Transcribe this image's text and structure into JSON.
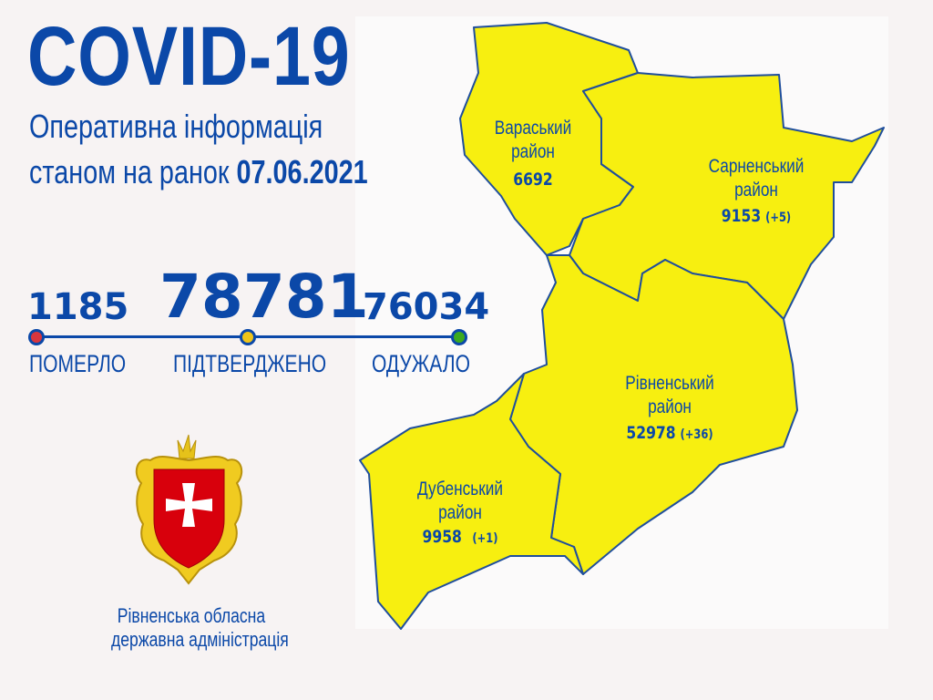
{
  "header": {
    "title": "COVID-19",
    "subtitle_line1": "Оперативна інформація",
    "subtitle_line2_prefix": "станом на ранок",
    "date": "07.06.2021"
  },
  "stats": {
    "died": {
      "value": "1185",
      "label": "ПОМЕРЛО",
      "color": "#d9363e"
    },
    "confirmed": {
      "value": "78781",
      "label": "ПІДТВЕРДЖЕНО",
      "color": "#f0c419"
    },
    "recovered": {
      "value": "76034",
      "label": "ОДУЖАЛО",
      "color": "#3caa1e"
    }
  },
  "map": {
    "fill_color": "#f7ef10",
    "border_color": "#1f4e9c",
    "districts": [
      {
        "name": "Вараський",
        "suffix": "район",
        "total": "6692",
        "delta": ""
      },
      {
        "name": "Сарненський",
        "suffix": "район",
        "total": "9153",
        "delta": "(+5)"
      },
      {
        "name": "Рівненський",
        "suffix": "район",
        "total": "52978",
        "delta": "(+36)"
      },
      {
        "name": "Дубенський",
        "suffix": "район",
        "total": "9958",
        "delta": "(+1)"
      }
    ]
  },
  "emblem": {
    "icon": "rivne-oblast-coat-of-arms"
  },
  "organization": {
    "line1": "Рівненська обласна",
    "line2": "державна адміністрація"
  }
}
